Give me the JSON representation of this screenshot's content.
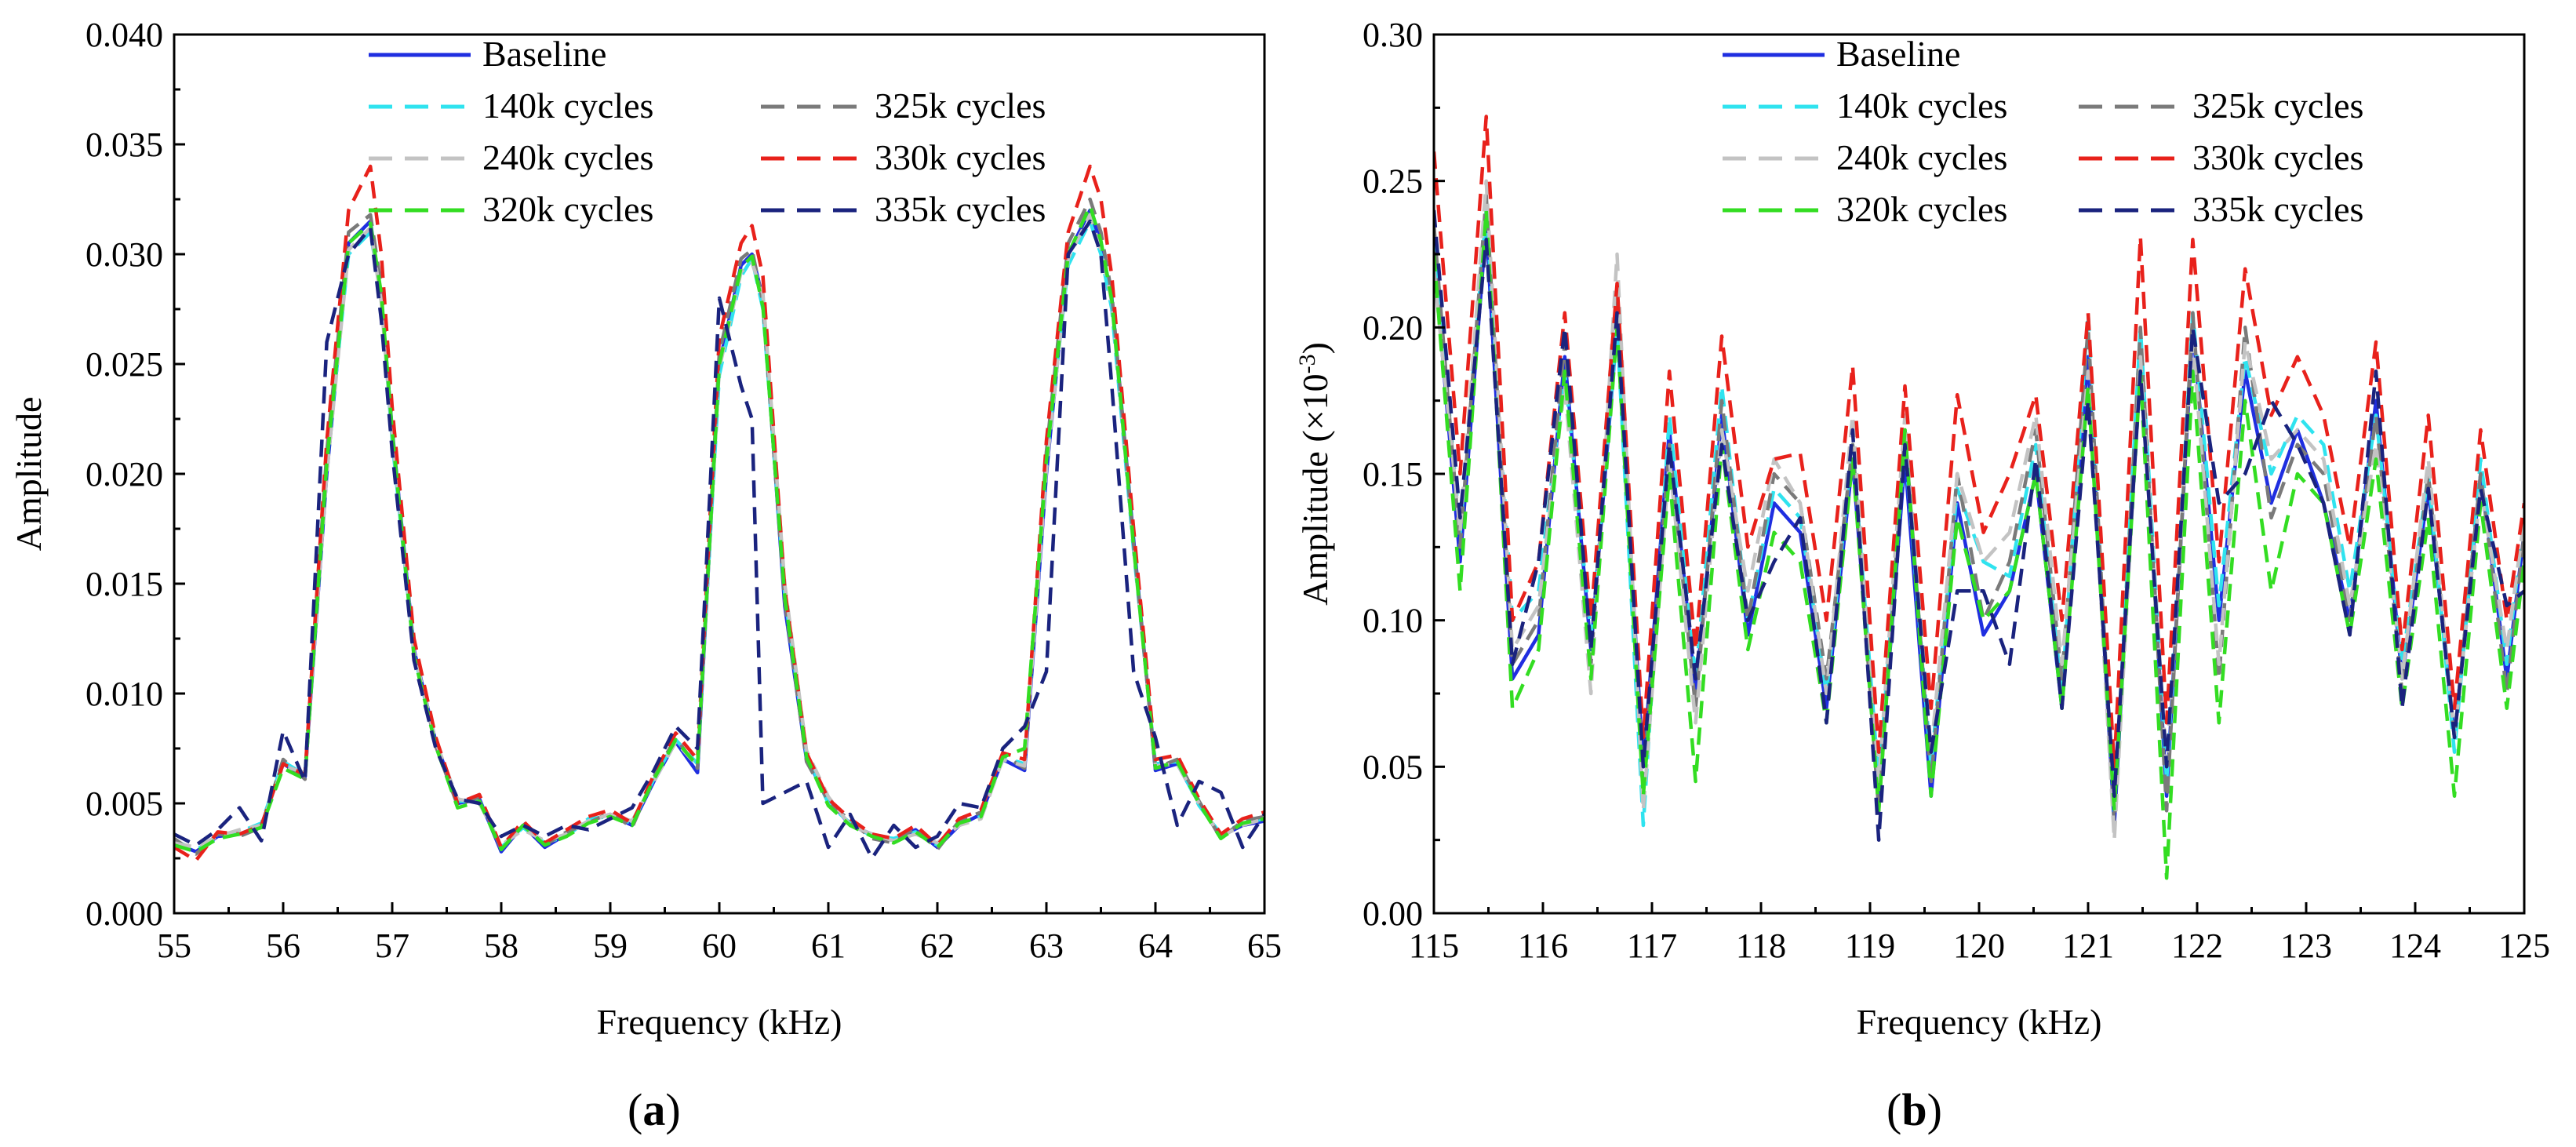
{
  "chart_data": [
    {
      "panel": "a",
      "panel_label_paren_open": "(",
      "panel_label_letter": "a",
      "panel_label_paren_close": ")",
      "type": "line",
      "xlabel": "Frequency (kHz)",
      "ylabel": "Amplitude",
      "ylabel_sup": "",
      "ylabel_suffix": "",
      "xlim": [
        55,
        65
      ],
      "ylim": [
        0,
        0.04
      ],
      "xticks": [
        55,
        56,
        57,
        58,
        59,
        60,
        61,
        62,
        63,
        64,
        65
      ],
      "xtick_labels": [
        "55",
        "56",
        "57",
        "58",
        "59",
        "60",
        "61",
        "62",
        "63",
        "64",
        "65"
      ],
      "yticks": [
        0,
        0.005,
        0.01,
        0.015,
        0.02,
        0.025,
        0.03,
        0.035,
        0.04
      ],
      "ytick_labels": [
        "0.000",
        "0.005",
        "0.010",
        "0.015",
        "0.020",
        "0.025",
        "0.030",
        "0.035",
        "0.040"
      ],
      "legend_position": "top",
      "x": [
        55.0,
        55.2,
        55.4,
        55.6,
        55.8,
        56.0,
        56.2,
        56.4,
        56.6,
        56.8,
        56.9,
        57.0,
        57.2,
        57.4,
        57.6,
        57.8,
        58.0,
        58.2,
        58.4,
        58.6,
        58.8,
        59.0,
        59.2,
        59.4,
        59.6,
        59.8,
        60.0,
        60.2,
        60.3,
        60.4,
        60.6,
        60.8,
        61.0,
        61.2,
        61.4,
        61.6,
        61.8,
        62.0,
        62.2,
        62.4,
        62.6,
        62.8,
        63.0,
        63.2,
        63.4,
        63.5,
        63.6,
        63.8,
        64.0,
        64.2,
        64.4,
        64.6,
        64.8,
        65.0
      ],
      "series": [
        {
          "name": "Baseline",
          "color": "#1f2ee0",
          "dash": "solid",
          "values": [
            0.0032,
            0.0028,
            0.0035,
            0.0036,
            0.004,
            0.0068,
            0.0062,
            0.02,
            0.0305,
            0.0315,
            0.028,
            0.022,
            0.012,
            0.0078,
            0.005,
            0.0052,
            0.0028,
            0.004,
            0.003,
            0.0036,
            0.0042,
            0.0045,
            0.004,
            0.006,
            0.0078,
            0.0064,
            0.025,
            0.0295,
            0.03,
            0.028,
            0.014,
            0.007,
            0.0052,
            0.004,
            0.0036,
            0.0033,
            0.0038,
            0.003,
            0.004,
            0.0045,
            0.007,
            0.0065,
            0.02,
            0.03,
            0.032,
            0.0305,
            0.028,
            0.017,
            0.0065,
            0.0068,
            0.005,
            0.0035,
            0.004,
            0.0042
          ]
        },
        {
          "name": "140k cycles",
          "color": "#2fe3ef",
          "dash": "dash",
          "values": [
            0.0033,
            0.0029,
            0.0034,
            0.0037,
            0.0041,
            0.0069,
            0.0063,
            0.0205,
            0.03,
            0.031,
            0.028,
            0.0215,
            0.0118,
            0.0077,
            0.0051,
            0.0051,
            0.003,
            0.0039,
            0.0032,
            0.0035,
            0.0043,
            0.0044,
            0.0041,
            0.0061,
            0.0079,
            0.0068,
            0.0245,
            0.029,
            0.0298,
            0.0275,
            0.0145,
            0.0072,
            0.005,
            0.0041,
            0.0035,
            0.0034,
            0.0037,
            0.0031,
            0.0041,
            0.0044,
            0.0071,
            0.0068,
            0.0205,
            0.0295,
            0.0315,
            0.03,
            0.0275,
            0.0165,
            0.0068,
            0.0069,
            0.0049,
            0.0036,
            0.0041,
            0.0043
          ]
        },
        {
          "name": "325k cycles",
          "color": "#7a7a7a",
          "dash": "dash",
          "values": [
            0.0034,
            0.0027,
            0.0036,
            0.0035,
            0.0039,
            0.007,
            0.0061,
            0.021,
            0.031,
            0.0318,
            0.0285,
            0.0222,
            0.0121,
            0.0076,
            0.0049,
            0.0053,
            0.0029,
            0.0041,
            0.0031,
            0.0037,
            0.0041,
            0.0046,
            0.0039,
            0.0062,
            0.008,
            0.0066,
            0.0255,
            0.0298,
            0.0302,
            0.0278,
            0.0142,
            0.0069,
            0.0051,
            0.0042,
            0.0034,
            0.0032,
            0.0039,
            0.0029,
            0.0042,
            0.0046,
            0.0072,
            0.0066,
            0.021,
            0.0305,
            0.0325,
            0.031,
            0.0282,
            0.0168,
            0.0066,
            0.007,
            0.0051,
            0.0034,
            0.0042,
            0.0044
          ]
        },
        {
          "name": "240k cycles",
          "color": "#c3c3c3",
          "dash": "dash",
          "values": [
            0.0032,
            0.003,
            0.0035,
            0.0038,
            0.004,
            0.0067,
            0.0064,
            0.02,
            0.0302,
            0.0312,
            0.0278,
            0.0218,
            0.0119,
            0.0078,
            0.0052,
            0.005,
            0.0031,
            0.0038,
            0.0033,
            0.0036,
            0.0042,
            0.0045,
            0.0042,
            0.006,
            0.0078,
            0.0067,
            0.0248,
            0.0292,
            0.0296,
            0.0282,
            0.015,
            0.0074,
            0.0053,
            0.004,
            0.0036,
            0.0033,
            0.0036,
            0.0032,
            0.004,
            0.0043,
            0.007,
            0.0067,
            0.0202,
            0.0298,
            0.0318,
            0.0302,
            0.0278,
            0.0166,
            0.0067,
            0.0068,
            0.005,
            0.0035,
            0.004,
            0.0043
          ]
        },
        {
          "name": "330k cycles",
          "color": "#e8211b",
          "dash": "dash",
          "values": [
            0.003,
            0.0024,
            0.0037,
            0.0036,
            0.004,
            0.0068,
            0.0063,
            0.0215,
            0.032,
            0.034,
            0.03,
            0.023,
            0.0125,
            0.008,
            0.005,
            0.0054,
            0.003,
            0.0042,
            0.0032,
            0.0038,
            0.0044,
            0.0047,
            0.0041,
            0.0063,
            0.0082,
            0.007,
            0.0262,
            0.0305,
            0.0313,
            0.029,
            0.0148,
            0.0073,
            0.0052,
            0.0043,
            0.0036,
            0.0034,
            0.004,
            0.0031,
            0.0043,
            0.0047,
            0.0073,
            0.007,
            0.0215,
            0.031,
            0.034,
            0.0325,
            0.029,
            0.0175,
            0.007,
            0.0072,
            0.0052,
            0.0036,
            0.0043,
            0.0046
          ]
        },
        {
          "name": "320k cycles",
          "color": "#33dd22",
          "dash": "dash",
          "values": [
            0.0031,
            0.0028,
            0.0034,
            0.0036,
            0.0039,
            0.0066,
            0.0061,
            0.0205,
            0.0305,
            0.0314,
            0.0282,
            0.0219,
            0.0117,
            0.0076,
            0.0048,
            0.0051,
            0.0029,
            0.004,
            0.0031,
            0.0035,
            0.0041,
            0.0044,
            0.004,
            0.0061,
            0.0079,
            0.0067,
            0.025,
            0.0294,
            0.0299,
            0.0276,
            0.0144,
            0.0071,
            0.0049,
            0.004,
            0.0035,
            0.0032,
            0.0037,
            0.003,
            0.0041,
            0.0044,
            0.0071,
            0.0075,
            0.0206,
            0.03,
            0.0322,
            0.0306,
            0.0279,
            0.0167,
            0.0066,
            0.0069,
            0.005,
            0.0034,
            0.0041,
            0.0043
          ]
        },
        {
          "name": "335k cycles",
          "color": "#1a237e",
          "dash": "dash",
          "values": [
            0.0036,
            0.0031,
            0.0038,
            0.0048,
            0.0033,
            0.0083,
            0.006,
            0.026,
            0.03,
            0.0312,
            0.027,
            0.021,
            0.0115,
            0.0075,
            0.0052,
            0.005,
            0.0035,
            0.004,
            0.0035,
            0.004,
            0.0038,
            0.0043,
            0.0048,
            0.0065,
            0.0085,
            0.0075,
            0.028,
            0.024,
            0.0225,
            0.005,
            0.0055,
            0.006,
            0.003,
            0.0045,
            0.0025,
            0.004,
            0.003,
            0.0035,
            0.005,
            0.0048,
            0.0075,
            0.0085,
            0.011,
            0.03,
            0.0315,
            0.03,
            0.024,
            0.011,
            0.008,
            0.004,
            0.006,
            0.0055,
            0.003,
            0.0045
          ]
        }
      ]
    },
    {
      "panel": "b",
      "panel_label_paren_open": "(",
      "panel_label_letter": "b",
      "panel_label_paren_close": ")",
      "type": "line",
      "xlabel": "Frequency (kHz)",
      "ylabel": "Amplitude (×10",
      "ylabel_sup": "-3",
      "ylabel_suffix": ")",
      "xlim": [
        115,
        125
      ],
      "ylim": [
        0,
        0.3
      ],
      "xticks": [
        115,
        116,
        117,
        118,
        119,
        120,
        121,
        122,
        123,
        124,
        125
      ],
      "xtick_labels": [
        "115",
        "116",
        "117",
        "118",
        "119",
        "120",
        "121",
        "122",
        "123",
        "124",
        "125"
      ],
      "yticks": [
        0,
        0.05,
        0.1,
        0.15,
        0.2,
        0.25,
        0.3
      ],
      "ytick_labels": [
        "0.00",
        "0.05",
        "0.10",
        "0.15",
        "0.20",
        "0.25",
        "0.30"
      ],
      "legend_position": "top",
      "x": [
        115.0,
        115.24,
        115.48,
        115.72,
        115.96,
        116.2,
        116.44,
        116.68,
        116.92,
        117.16,
        117.4,
        117.64,
        117.88,
        118.12,
        118.36,
        118.6,
        118.84,
        119.08,
        119.32,
        119.56,
        119.8,
        120.04,
        120.28,
        120.52,
        120.76,
        121.0,
        121.24,
        121.48,
        121.72,
        121.96,
        122.2,
        122.44,
        122.68,
        122.92,
        123.16,
        123.4,
        123.64,
        123.88,
        124.12,
        124.36,
        124.6,
        124.84,
        125.0
      ],
      "series": [
        {
          "name": "Baseline",
          "color": "#1f2ee0",
          "dash": "solid",
          "values": [
            0.225,
            0.12,
            0.235,
            0.08,
            0.095,
            0.19,
            0.09,
            0.2,
            0.05,
            0.165,
            0.075,
            0.17,
            0.095,
            0.14,
            0.13,
            0.07,
            0.155,
            0.04,
            0.155,
            0.04,
            0.14,
            0.095,
            0.11,
            0.15,
            0.07,
            0.19,
            0.03,
            0.195,
            0.04,
            0.2,
            0.1,
            0.185,
            0.14,
            0.165,
            0.14,
            0.1,
            0.175,
            0.08,
            0.145,
            0.06,
            0.15,
            0.08,
            0.13
          ]
        },
        {
          "name": "140k cycles",
          "color": "#2fe3ef",
          "dash": "dash",
          "values": [
            0.23,
            0.13,
            0.24,
            0.1,
            0.11,
            0.185,
            0.095,
            0.2,
            0.03,
            0.17,
            0.08,
            0.18,
            0.1,
            0.145,
            0.135,
            0.075,
            0.16,
            0.045,
            0.16,
            0.05,
            0.145,
            0.12,
            0.115,
            0.16,
            0.075,
            0.205,
            0.035,
            0.2,
            0.045,
            0.205,
            0.105,
            0.19,
            0.15,
            0.17,
            0.16,
            0.11,
            0.17,
            0.085,
            0.15,
            0.055,
            0.155,
            0.085,
            0.135
          ]
        },
        {
          "name": "325k cycles",
          "color": "#7a7a7a",
          "dash": "dash",
          "values": [
            0.235,
            0.125,
            0.245,
            0.085,
            0.1,
            0.195,
            0.085,
            0.21,
            0.045,
            0.16,
            0.07,
            0.175,
            0.1,
            0.15,
            0.14,
            0.08,
            0.16,
            0.035,
            0.165,
            0.045,
            0.15,
            0.1,
            0.12,
            0.165,
            0.08,
            0.2,
            0.03,
            0.2,
            0.035,
            0.205,
            0.08,
            0.2,
            0.135,
            0.16,
            0.15,
            0.1,
            0.17,
            0.075,
            0.15,
            0.06,
            0.15,
            0.075,
            0.13
          ]
        },
        {
          "name": "240k cycles",
          "color": "#c3c3c3",
          "dash": "dash",
          "values": [
            0.22,
            0.13,
            0.25,
            0.09,
            0.105,
            0.18,
            0.075,
            0.225,
            0.035,
            0.155,
            0.065,
            0.165,
            0.11,
            0.155,
            0.14,
            0.075,
            0.17,
            0.045,
            0.17,
            0.055,
            0.15,
            0.12,
            0.13,
            0.17,
            0.085,
            0.185,
            0.025,
            0.19,
            0.05,
            0.195,
            0.085,
            0.195,
            0.155,
            0.165,
            0.155,
            0.105,
            0.16,
            0.08,
            0.155,
            0.06,
            0.145,
            0.09,
            0.135
          ]
        },
        {
          "name": "330k cycles",
          "color": "#e8211b",
          "dash": "dash",
          "values": [
            0.26,
            0.15,
            0.272,
            0.1,
            0.12,
            0.205,
            0.1,
            0.215,
            0.06,
            0.185,
            0.09,
            0.197,
            0.125,
            0.155,
            0.157,
            0.1,
            0.187,
            0.055,
            0.18,
            0.07,
            0.177,
            0.13,
            0.15,
            0.177,
            0.1,
            0.205,
            0.05,
            0.231,
            0.065,
            0.23,
            0.12,
            0.22,
            0.17,
            0.19,
            0.17,
            0.125,
            0.195,
            0.09,
            0.17,
            0.07,
            0.165,
            0.1,
            0.14
          ]
        },
        {
          "name": "320k cycles",
          "color": "#33dd22",
          "dash": "dash",
          "values": [
            0.225,
            0.11,
            0.24,
            0.07,
            0.09,
            0.185,
            0.08,
            0.2,
            0.04,
            0.15,
            0.045,
            0.16,
            0.09,
            0.13,
            0.12,
            0.065,
            0.155,
            0.035,
            0.165,
            0.04,
            0.135,
            0.1,
            0.11,
            0.15,
            0.07,
            0.18,
            0.035,
            0.185,
            0.012,
            0.185,
            0.065,
            0.175,
            0.11,
            0.15,
            0.14,
            0.095,
            0.155,
            0.07,
            0.135,
            0.04,
            0.14,
            0.07,
            0.12
          ]
        },
        {
          "name": "335k cycles",
          "color": "#1a237e",
          "dash": "dash",
          "values": [
            0.24,
            0.135,
            0.23,
            0.085,
            0.12,
            0.2,
            0.09,
            0.205,
            0.05,
            0.16,
            0.08,
            0.16,
            0.1,
            0.12,
            0.135,
            0.065,
            0.165,
            0.025,
            0.16,
            0.055,
            0.11,
            0.11,
            0.085,
            0.155,
            0.07,
            0.175,
            0.04,
            0.185,
            0.05,
            0.2,
            0.14,
            0.15,
            0.175,
            0.16,
            0.14,
            0.095,
            0.185,
            0.07,
            0.145,
            0.06,
            0.145,
            0.105,
            0.11
          ]
        }
      ]
    }
  ]
}
